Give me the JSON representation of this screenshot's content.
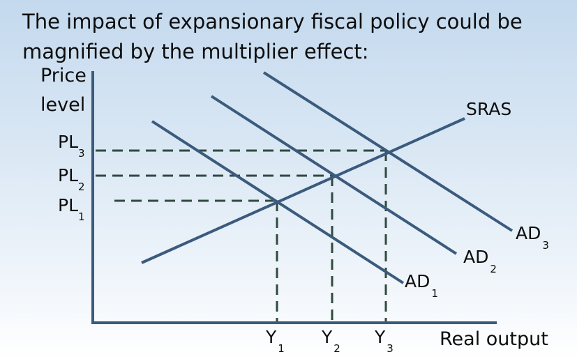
{
  "title": "The impact of expansionary fiscal policy could be magnified by the multiplier effect:",
  "y_axis_label_line1": "Price",
  "y_axis_label_line2": "level",
  "x_axis_label": "Real output",
  "curves": {
    "sras": "SRAS",
    "ad1": {
      "base": "AD",
      "sub": "1"
    },
    "ad2": {
      "base": "AD",
      "sub": "2"
    },
    "ad3": {
      "base": "AD",
      "sub": "3"
    }
  },
  "price_levels": [
    {
      "base": "PL",
      "sub": "3"
    },
    {
      "base": "PL",
      "sub": "2"
    },
    {
      "base": "PL",
      "sub": "1"
    }
  ],
  "outputs": [
    {
      "base": "Y",
      "sub": "1"
    },
    {
      "base": "Y",
      "sub": "2"
    },
    {
      "base": "Y",
      "sub": "3"
    }
  ],
  "colors": {
    "lines": "#3b5b7d",
    "dashes": "#2f4a3e",
    "text": "#0d0d0d"
  }
}
